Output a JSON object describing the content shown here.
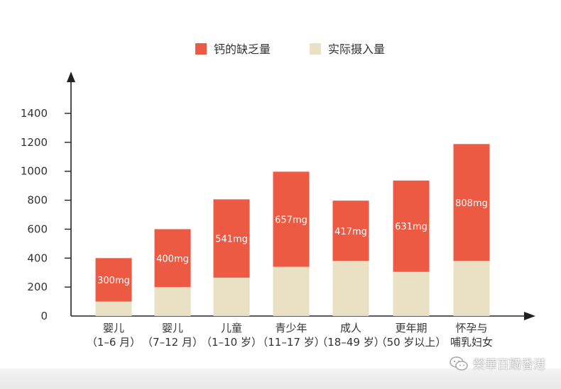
{
  "chart_data": {
    "type": "bar",
    "stacked": true,
    "categories": [
      [
        "婴儿",
        "（1–6 月）"
      ],
      [
        "婴儿",
        "（7–12 月）"
      ],
      [
        "儿童",
        "（1–10 岁）"
      ],
      [
        "青少年",
        "（11–17 岁）"
      ],
      [
        "成人",
        "（18–49 岁）"
      ],
      [
        "更年期",
        "（50 岁以上）"
      ],
      [
        "怀孕与",
        "哺乳妇女"
      ]
    ],
    "series": [
      {
        "name": "实际摄入量",
        "color": "#eae0c3",
        "values": [
          100,
          200,
          265,
          340,
          380,
          305,
          380
        ]
      },
      {
        "name": "钙的缺乏量",
        "color": "#ed5a43",
        "values": [
          300,
          400,
          541,
          657,
          417,
          631,
          808
        ],
        "labels": [
          "300mg",
          "400mg",
          "541mg",
          "657mg",
          "417mg",
          "631mg",
          "808mg"
        ]
      }
    ],
    "legend_order": [
      1,
      0
    ],
    "legend_position": "top-center",
    "yticks": [
      "0",
      "200",
      "400",
      "600",
      "800",
      "1000",
      "1200",
      "1400"
    ],
    "ylim": [
      0,
      1400
    ],
    "grid": false
  },
  "watermark": {
    "text": "榮華百購香港",
    "icon": "wechat-icon"
  }
}
